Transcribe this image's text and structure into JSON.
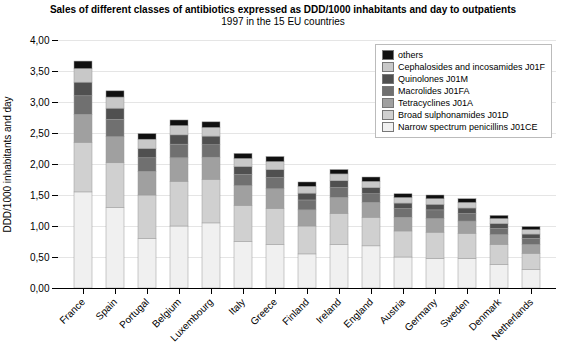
{
  "chart_data": {
    "type": "bar",
    "stacked": true,
    "title": "Sales of different classes of antibiotics expressed as DDD/1000 inhabitants and day to outpatients",
    "subtitle": "1997 in the 15 EU countries",
    "ylabel": "DDD/1000 inhabitants and day",
    "categories": [
      "France",
      "Spain",
      "Portugal",
      "Belgium",
      "Luxembourg",
      "Italy",
      "Greece",
      "Finland",
      "Ireland",
      "England",
      "Austria",
      "Germany",
      "Sweden",
      "Denmark",
      "Netherlands"
    ],
    "series": [
      {
        "name": "Narrow spectrum penicillins J01CE",
        "color": "#f0f0f0",
        "values": [
          1.55,
          1.3,
          0.8,
          1.0,
          1.05,
          0.75,
          0.7,
          0.55,
          0.7,
          0.68,
          0.5,
          0.48,
          0.48,
          0.38,
          0.3
        ]
      },
      {
        "name": "Broad sulphonamides J01D",
        "color": "#d0d0d0",
        "values": [
          0.8,
          0.72,
          0.7,
          0.72,
          0.7,
          0.58,
          0.58,
          0.45,
          0.5,
          0.46,
          0.42,
          0.42,
          0.4,
          0.32,
          0.26
        ]
      },
      {
        "name": "Tetracyclines J01A",
        "color": "#a0a0a0",
        "values": [
          0.45,
          0.42,
          0.38,
          0.38,
          0.36,
          0.32,
          0.32,
          0.26,
          0.26,
          0.24,
          0.22,
          0.22,
          0.2,
          0.16,
          0.14
        ]
      },
      {
        "name": "Macrolides J01FA",
        "color": "#707070",
        "values": [
          0.3,
          0.28,
          0.22,
          0.22,
          0.2,
          0.18,
          0.18,
          0.16,
          0.16,
          0.14,
          0.14,
          0.14,
          0.12,
          0.1,
          0.1
        ]
      },
      {
        "name": "Quinolones J01M",
        "color": "#505050",
        "values": [
          0.22,
          0.18,
          0.15,
          0.15,
          0.14,
          0.13,
          0.13,
          0.11,
          0.11,
          0.1,
          0.09,
          0.09,
          0.09,
          0.08,
          0.07
        ]
      },
      {
        "name": "Cephalosides and incosamides J01F",
        "color": "#c8c8c8",
        "values": [
          0.22,
          0.18,
          0.15,
          0.15,
          0.14,
          0.13,
          0.13,
          0.11,
          0.11,
          0.1,
          0.09,
          0.09,
          0.09,
          0.08,
          0.07
        ]
      },
      {
        "name": "others",
        "color": "#101010",
        "values": [
          0.12,
          0.1,
          0.09,
          0.09,
          0.09,
          0.08,
          0.08,
          0.07,
          0.07,
          0.07,
          0.06,
          0.06,
          0.06,
          0.05,
          0.05
        ]
      }
    ],
    "ylim": [
      0,
      4.0
    ],
    "yticks": [
      {
        "value": 0.0,
        "label": "0,00"
      },
      {
        "value": 0.5,
        "label": "0,50"
      },
      {
        "value": 1.0,
        "label": "1,00"
      },
      {
        "value": 1.5,
        "label": "1,50"
      },
      {
        "value": 2.0,
        "label": "2,00"
      },
      {
        "value": 2.5,
        "label": "2,50"
      },
      {
        "value": 3.0,
        "label": "3,00"
      },
      {
        "value": 3.5,
        "label": "3,50"
      },
      {
        "value": 4.0,
        "label": "4,00"
      }
    ],
    "grid": true,
    "legend": "upper right"
  }
}
